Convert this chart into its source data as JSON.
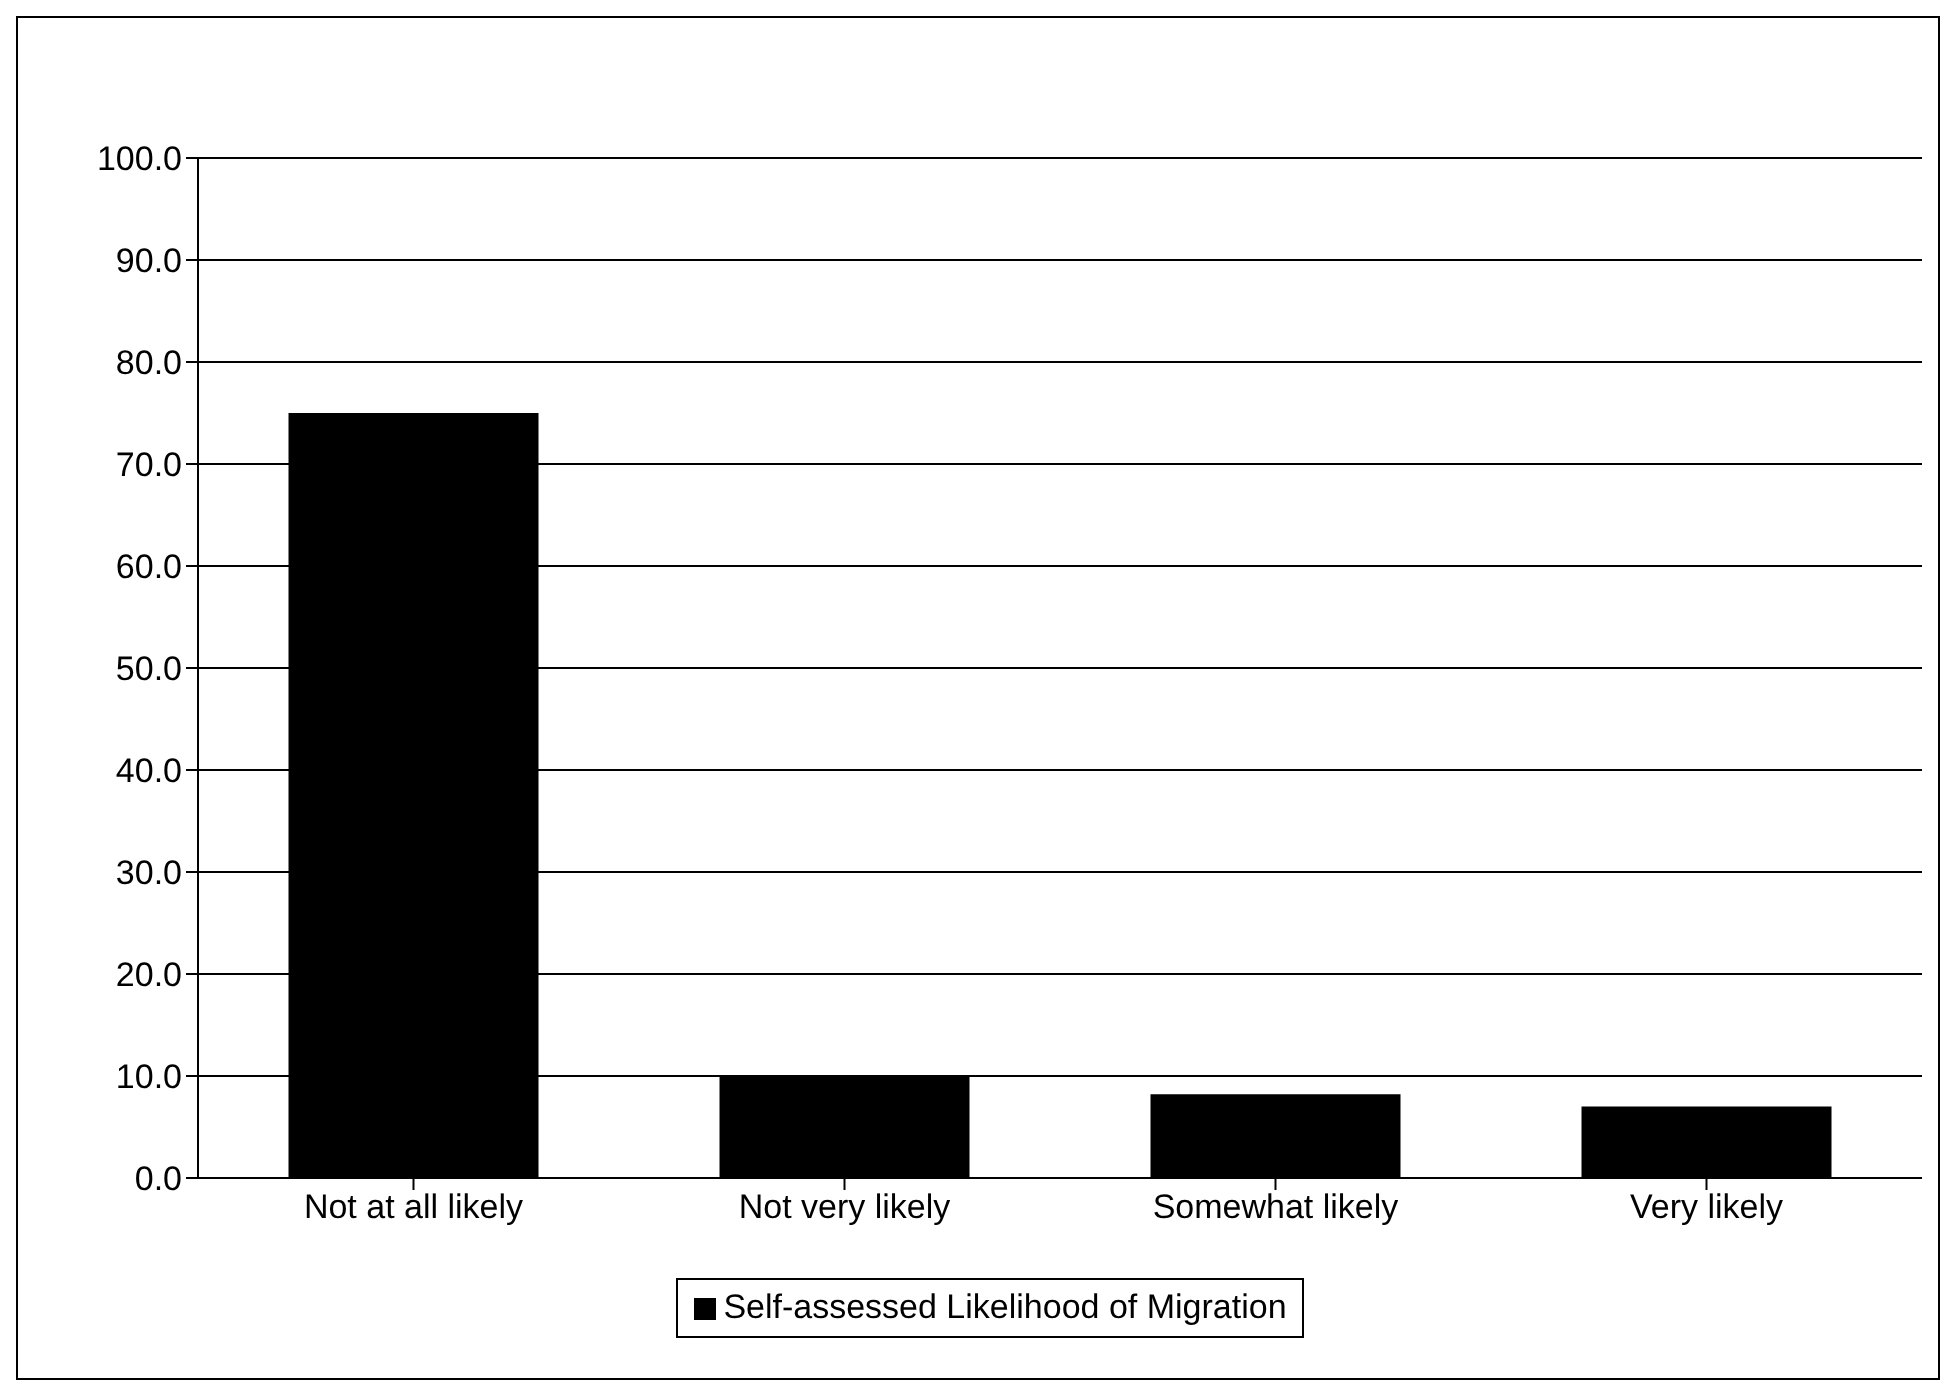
{
  "chart_data": {
    "type": "bar",
    "categories": [
      "Not at all likely",
      "Not very likely",
      "Somewhat likely",
      "Very likely"
    ],
    "series": [
      {
        "name": "Self-assessed Likelihood of Migration",
        "color": "#000000",
        "values": [
          75.0,
          10.0,
          8.2,
          7.0
        ]
      }
    ],
    "ylim": [
      0,
      100
    ],
    "yticks": [
      {
        "value": 0,
        "label": "0.0"
      },
      {
        "value": 10,
        "label": "10.0"
      },
      {
        "value": 20,
        "label": "20.0"
      },
      {
        "value": 30,
        "label": "30.0"
      },
      {
        "value": 40,
        "label": "40.0"
      },
      {
        "value": 50,
        "label": "50.0"
      },
      {
        "value": 60,
        "label": "60.0"
      },
      {
        "value": 70,
        "label": "70.0"
      },
      {
        "value": 80,
        "label": "80.0"
      },
      {
        "value": 90,
        "label": "90.0"
      },
      {
        "value": 100,
        "label": "100.0"
      }
    ],
    "grid": "y",
    "legend": "bottom"
  }
}
